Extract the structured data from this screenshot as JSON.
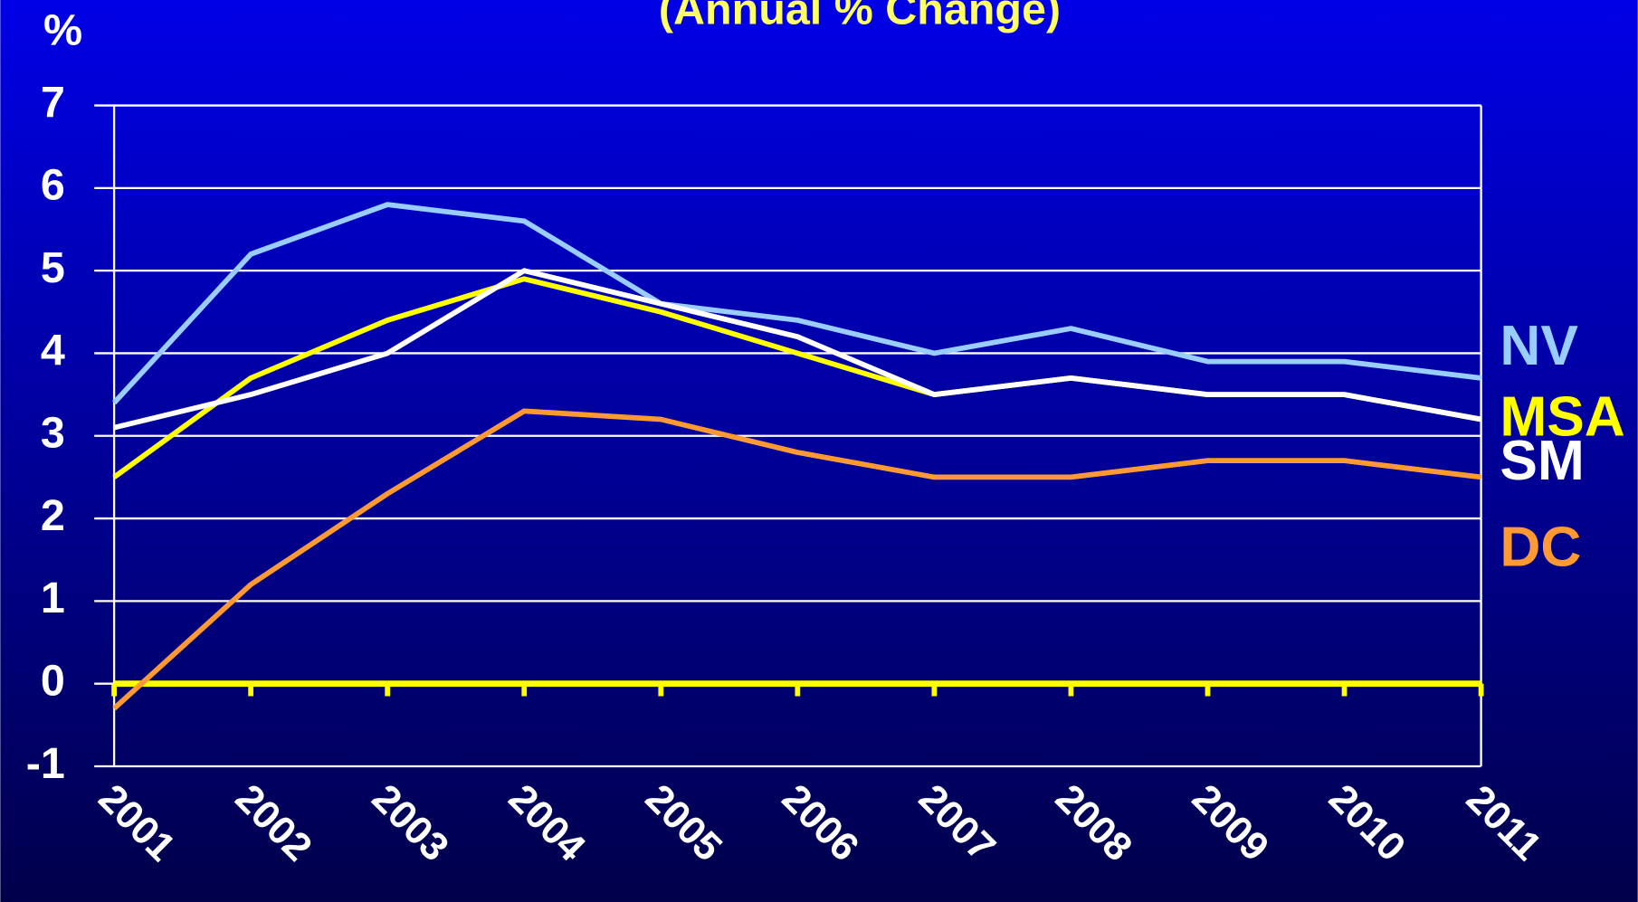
{
  "chart_data": {
    "type": "line",
    "title": "(Annual % Change)",
    "y_label": "%",
    "categories": [
      "2001",
      "2002",
      "2003",
      "2004",
      "2005",
      "2006",
      "2007",
      "2008",
      "2009",
      "2010",
      "2011"
    ],
    "series": [
      {
        "name": "NV",
        "color": "#99ccff",
        "values": [
          3.4,
          5.2,
          5.8,
          5.6,
          4.6,
          4.4,
          4.0,
          4.3,
          3.9,
          3.9,
          3.7
        ]
      },
      {
        "name": "MSA",
        "color": "#ffff00",
        "values": [
          2.5,
          3.7,
          4.4,
          4.9,
          4.5,
          4.0,
          3.5,
          3.7,
          3.5,
          3.5,
          3.2
        ]
      },
      {
        "name": "SM",
        "color": "#ffffff",
        "values": [
          3.1,
          3.5,
          4.0,
          5.0,
          4.6,
          4.2,
          3.5,
          3.7,
          3.5,
          3.5,
          3.2
        ]
      },
      {
        "name": "DC",
        "color": "#ff9933",
        "values": [
          -0.3,
          1.2,
          2.3,
          3.3,
          3.2,
          2.8,
          2.5,
          2.5,
          2.7,
          2.7,
          2.5
        ]
      }
    ],
    "ylim": [
      -1,
      7
    ],
    "yticks": [
      -1,
      0,
      1,
      2,
      3,
      4,
      5,
      6,
      7
    ],
    "grid": true
  }
}
